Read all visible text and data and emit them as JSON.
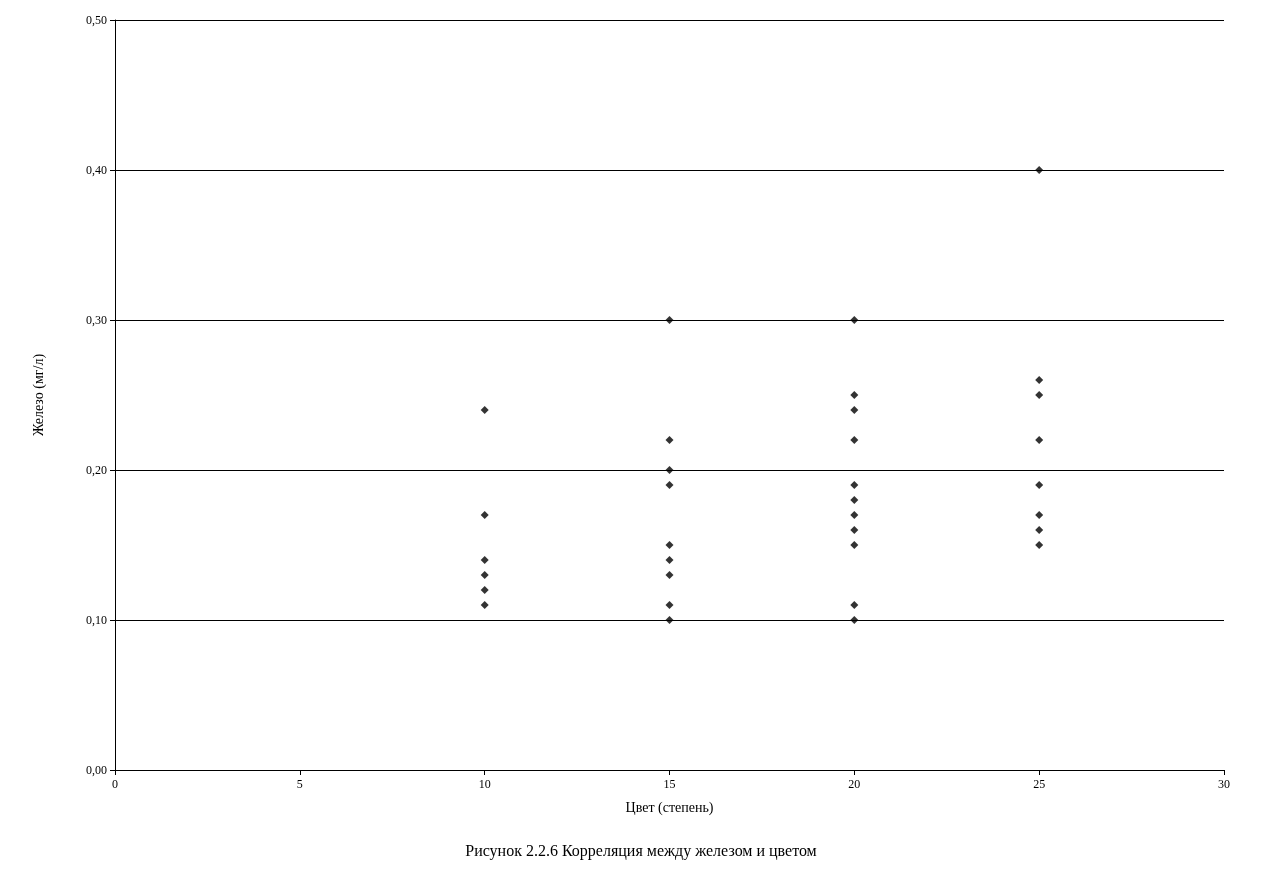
{
  "chart_data": {
    "type": "scatter",
    "xlabel": "Цвет (степень)",
    "ylabel": "Железо (мг/л)",
    "annotations": [
      "Рисунок 2.2.6 Корреляция между железом и цветом"
    ],
    "x": [
      10,
      10,
      10,
      10,
      10,
      10,
      15,
      15,
      15,
      15,
      15,
      15,
      15,
      15,
      15,
      20,
      20,
      20,
      20,
      20,
      20,
      20,
      20,
      20,
      20,
      20,
      25,
      25,
      25,
      25,
      25,
      25,
      25,
      25
    ],
    "values": [
      0.24,
      0.17,
      0.14,
      0.13,
      0.12,
      0.11,
      0.3,
      0.22,
      0.2,
      0.19,
      0.15,
      0.14,
      0.13,
      0.11,
      0.1,
      0.3,
      0.25,
      0.24,
      0.22,
      0.19,
      0.18,
      0.17,
      0.16,
      0.15,
      0.11,
      0.1,
      0.4,
      0.26,
      0.25,
      0.22,
      0.19,
      0.17,
      0.16,
      0.15
    ],
    "color": "#000000",
    "marker": "diamond",
    "grid": "y",
    "xlim": [
      0,
      30
    ],
    "xticks": [
      0,
      5,
      10,
      15,
      20,
      25,
      30
    ],
    "ylim": [
      0,
      0.5
    ],
    "yticks": [
      {
        "value": 0,
        "label": "0,00"
      },
      {
        "value": 0.1,
        "label": "0,10"
      },
      {
        "value": 0.2,
        "label": "0,20"
      },
      {
        "value": 0.3,
        "label": "0,30"
      },
      {
        "value": 0.4,
        "label": "0,40"
      },
      {
        "value": 0.5,
        "label": "0,50"
      }
    ]
  }
}
